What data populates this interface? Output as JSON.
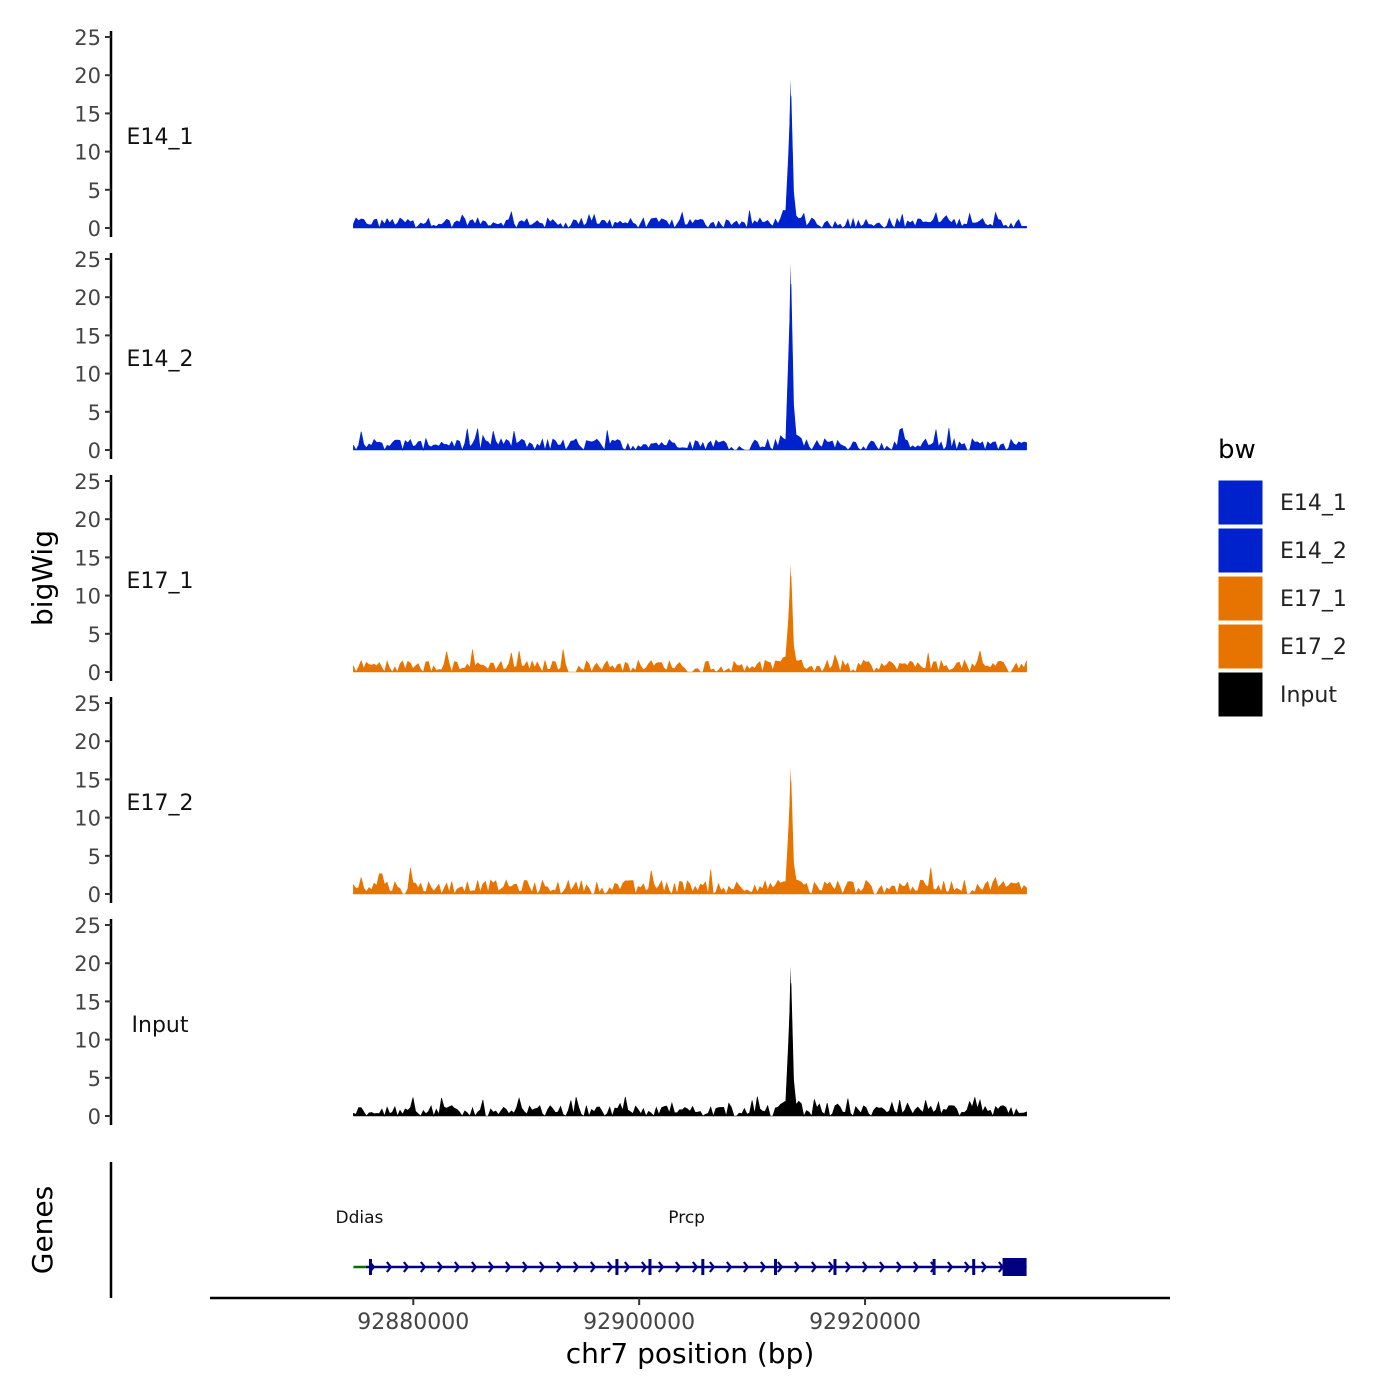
{
  "chart_data": {
    "type": "area",
    "title": "",
    "ylabel": "bigWig",
    "xlabel": "chr7 position (bp)",
    "xlim": [
      92862000,
      92947000
    ],
    "x_ticks": [
      {
        "value": 92880000,
        "label": "92880000"
      },
      {
        "value": 92900000,
        "label": "92900000"
      },
      {
        "value": 92920000,
        "label": "92920000"
      }
    ],
    "ylim": [
      0,
      25
    ],
    "y_ticks": [
      {
        "value": 0,
        "label": "0"
      },
      {
        "value": 5,
        "label": "5"
      },
      {
        "value": 10,
        "label": "10"
      },
      {
        "value": 15,
        "label": "15"
      },
      {
        "value": 20,
        "label": "20"
      },
      {
        "value": 25,
        "label": "25"
      }
    ],
    "signal_range": [
      92874700,
      92934300
    ],
    "series": [
      {
        "name": "E14_1",
        "color": "#0022CC",
        "peak": {
          "position": 92913400,
          "value": 19.5
        },
        "baseline_max": 2.5
      },
      {
        "name": "E14_2",
        "color": "#0022CC",
        "peak": {
          "position": 92913400,
          "value": 24.5
        },
        "baseline_max": 2.9
      },
      {
        "name": "E17_1",
        "color": "#E87400",
        "peak": {
          "position": 92913400,
          "value": 14.2
        },
        "baseline_max": 3.0
      },
      {
        "name": "E17_2",
        "color": "#E87400",
        "peak": {
          "position": 92913400,
          "value": 16.7
        },
        "baseline_max": 3.6
      },
      {
        "name": "Input",
        "color": "#000000",
        "peak": {
          "position": 92913400,
          "value": 19.6
        },
        "baseline_max": 2.6
      }
    ],
    "legend": {
      "title": "bw",
      "position": "right",
      "entries": [
        {
          "label": "E14_1",
          "color": "#0022CC"
        },
        {
          "label": "E14_2",
          "color": "#0022CC"
        },
        {
          "label": "E17_1",
          "color": "#E87400"
        },
        {
          "label": "E17_2",
          "color": "#E87400"
        },
        {
          "label": "Input",
          "color": "#000000"
        }
      ]
    },
    "genes_track": {
      "label": "Genes",
      "genes": [
        {
          "name": "Ddias",
          "strand": "-",
          "start": 92874700,
          "end": 92875800,
          "color": "#007000"
        },
        {
          "name": "Prcp",
          "strand": "+",
          "start": 92875800,
          "end": 92934300,
          "color": "#000080"
        }
      ]
    }
  }
}
